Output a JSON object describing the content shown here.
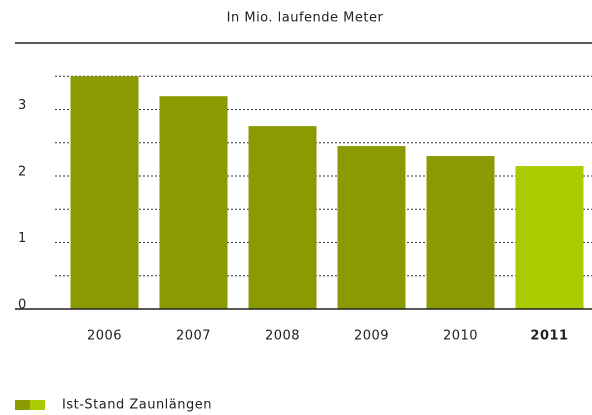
{
  "chart_data": {
    "type": "bar",
    "title": "In Mio. laufende Meter",
    "categories": [
      "2006",
      "2007",
      "2008",
      "2009",
      "2010",
      "2011"
    ],
    "values": [
      3.5,
      3.2,
      2.75,
      2.45,
      2.3,
      2.15
    ],
    "colors": [
      "#8a9a00",
      "#8a9a00",
      "#8a9a00",
      "#8a9a00",
      "#8a9a00",
      "#a9cc00"
    ],
    "highlight": 5,
    "ylim": [
      0,
      4
    ],
    "yticks": [
      0,
      1,
      2,
      3
    ],
    "minor_yticks": [
      0.5,
      1.5,
      2.5,
      3.5
    ],
    "grid": true,
    "legend": {
      "label": "Ist-Stand Zaunlängen",
      "colors": [
        "#8a9a00",
        "#a9cc00"
      ]
    }
  }
}
